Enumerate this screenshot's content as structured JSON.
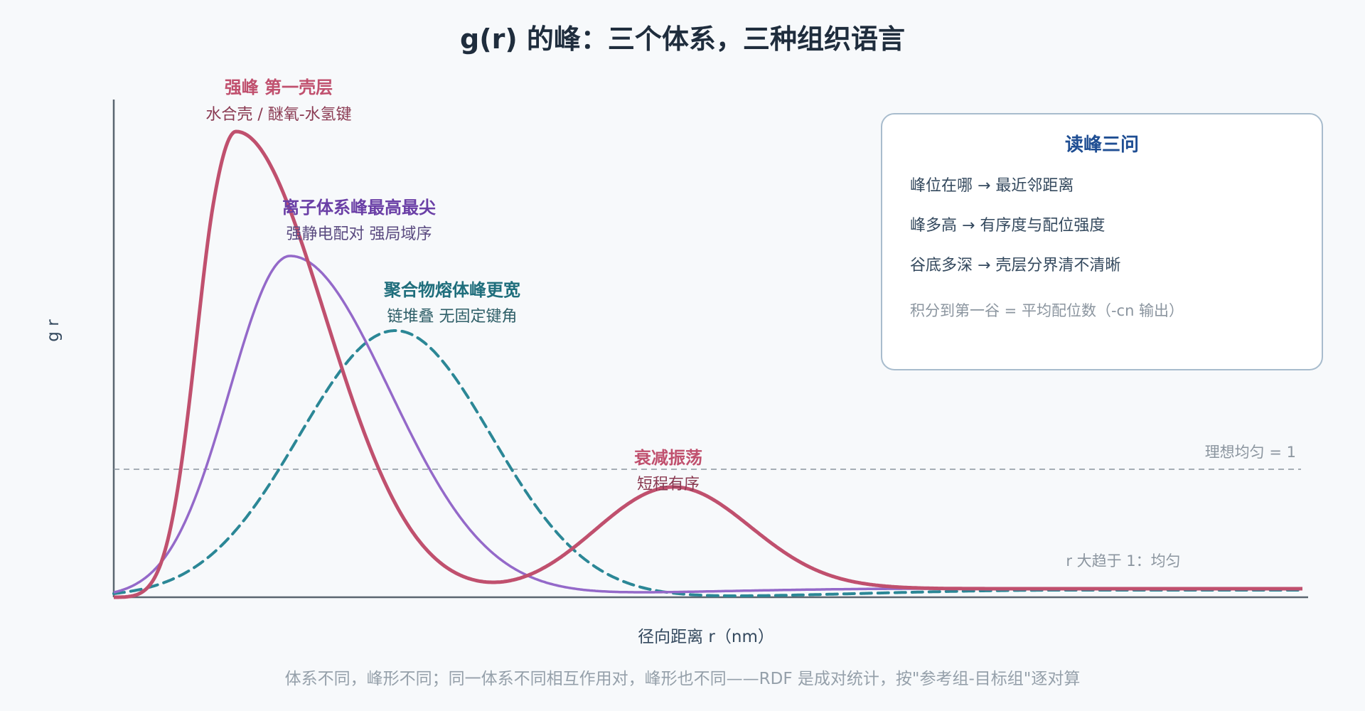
{
  "title": "g(r) 的峰：三个体系，三种组织语言",
  "x_axis_label": "径向距离 r（nm）",
  "y_axis_label": "g r",
  "reference_line_label": "理想均匀 = 1",
  "tail_note": "r 大趋于 1：均匀",
  "caption": "体系不同，峰形不同；同一体系不同相互作用对，峰形也不同——RDF 是成对统计，按\"参考组-目标组\"逐对算",
  "colors": {
    "water": "#c0506e",
    "ionic": "#9469c9",
    "polymer": "#2b8796",
    "axis": "#5a6670",
    "box_border": "#a8bccd",
    "box_title": "#1f4e93"
  },
  "annotations": {
    "first_shell_title": "强峰 第一壳层",
    "first_shell_sub": "水合壳 / 醚氧-水氢键",
    "ionic_title": "离子体系峰最高最尖",
    "ionic_sub": "强静电配对 强局域序",
    "polymer_title": "聚合物熔体峰更宽",
    "polymer_sub": "链堆叠 无固定键角",
    "damping_title": "衰减振荡",
    "damping_sub": "短程有序"
  },
  "infobox": {
    "title": "读峰三问",
    "lines": [
      "峰位在哪 → 最近邻距离",
      "峰多高 → 有序度与配位强度",
      "谷底多深 → 壳层分界清不清晰"
    ],
    "note": "积分到第一谷 = 平均配位数（-cn 输出）"
  }
}
